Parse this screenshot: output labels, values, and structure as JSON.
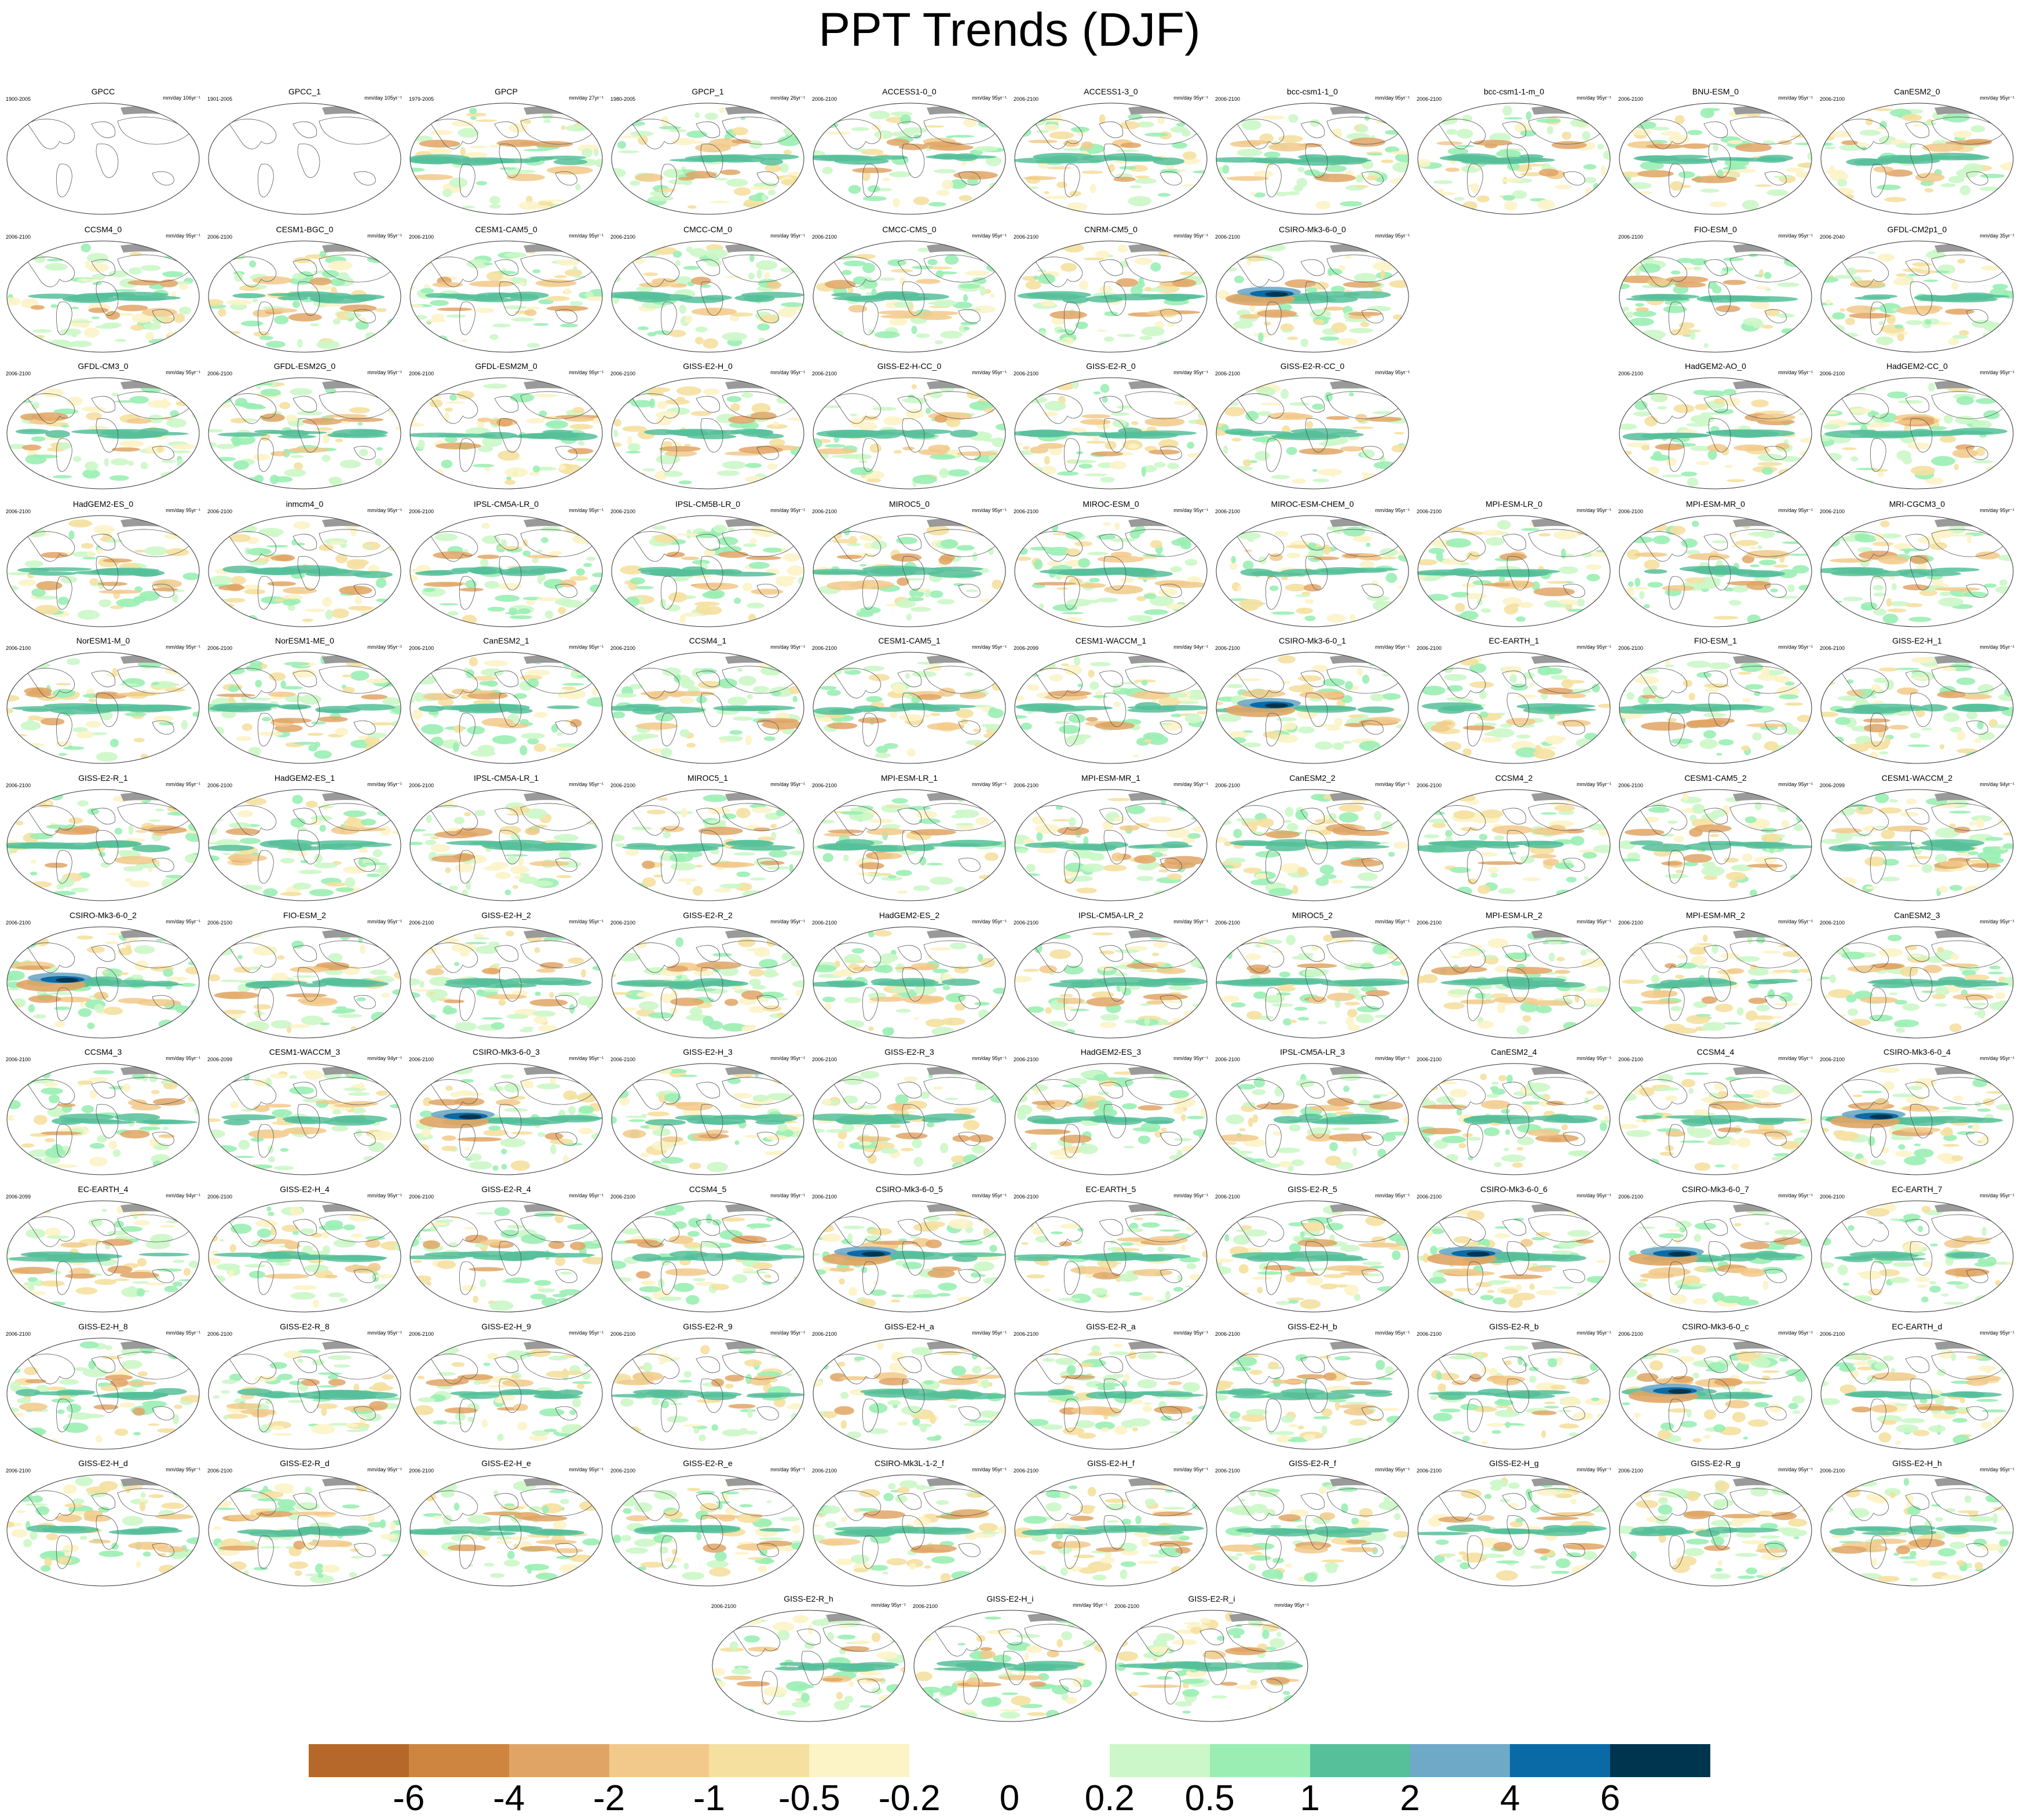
{
  "title": "PPT Trends (DJF)",
  "panels": [
    [
      {
        "name": "GPCC",
        "years": "1900-2005",
        "units": "mm/day 106yr⁻¹",
        "missing": true
      },
      {
        "name": "GPCC_1",
        "years": "1901-2005",
        "units": "mm/day 105yr⁻¹",
        "missing": true
      },
      {
        "name": "GPCP",
        "years": "1979-2005",
        "units": "mm/day 27yr⁻¹"
      },
      {
        "name": "GPCP_1",
        "years": "1980-2005",
        "units": "mm/day 26yr⁻¹"
      },
      {
        "name": "ACCESS1-0_0",
        "years": "2006-2100",
        "units": "mm/day 95yr⁻¹"
      },
      {
        "name": "ACCESS1-3_0",
        "years": "2006-2100",
        "units": "mm/day 95yr⁻¹"
      },
      {
        "name": "bcc-csm1-1_0",
        "years": "2006-2100",
        "units": "mm/day 95yr⁻¹"
      },
      {
        "name": "bcc-csm1-1-m_0",
        "years": "2006-2100",
        "units": "mm/day 95yr⁻¹"
      },
      {
        "name": "BNU-ESM_0",
        "years": "2006-2100",
        "units": "mm/day 95yr⁻¹"
      },
      {
        "name": "CanESM2_0",
        "years": "2006-2100",
        "units": "mm/day 95yr⁻¹"
      }
    ],
    [
      {
        "name": "CCSM4_0",
        "years": "2006-2100",
        "units": "mm/day 95yr⁻¹"
      },
      {
        "name": "CESM1-BGC_0",
        "years": "2006-2100",
        "units": "mm/day 95yr⁻¹"
      },
      {
        "name": "CESM1-CAM5_0",
        "years": "2006-2100",
        "units": "mm/day 95yr⁻¹"
      },
      {
        "name": "CMCC-CM_0",
        "years": "2006-2100",
        "units": "mm/day 95yr⁻¹"
      },
      {
        "name": "CMCC-CMS_0",
        "years": "2006-2100",
        "units": "mm/day 95yr⁻¹"
      },
      {
        "name": "CNRM-CM5_0",
        "years": "2006-2100",
        "units": "mm/day 95yr⁻¹"
      },
      {
        "name": "CSIRO-Mk3-6-0_0",
        "years": "2006-2100",
        "units": "mm/day 95yr⁻¹",
        "strong": true
      },
      null,
      {
        "name": "FIO-ESM_0",
        "years": "2006-2100",
        "units": "mm/day 95yr⁻¹"
      },
      {
        "name": "GFDL-CM2p1_0",
        "years": "2006-2040",
        "units": "mm/day 35yr⁻¹"
      }
    ],
    [
      {
        "name": "GFDL-CM3_0",
        "years": "2006-2100",
        "units": "mm/day 95yr⁻¹"
      },
      {
        "name": "GFDL-ESM2G_0",
        "years": "2006-2100",
        "units": "mm/day 95yr⁻¹"
      },
      {
        "name": "GFDL-ESM2M_0",
        "years": "2006-2100",
        "units": "mm/day 95yr⁻¹"
      },
      {
        "name": "GISS-E2-H_0",
        "years": "2006-2100",
        "units": "mm/day 95yr⁻¹"
      },
      {
        "name": "GISS-E2-H-CC_0",
        "years": "2006-2100",
        "units": "mm/day 95yr⁻¹"
      },
      {
        "name": "GISS-E2-R_0",
        "years": "2006-2100",
        "units": "mm/day 95yr⁻¹"
      },
      {
        "name": "GISS-E2-R-CC_0",
        "years": "2006-2100",
        "units": "mm/day 95yr⁻¹"
      },
      null,
      {
        "name": "HadGEM2-AO_0",
        "years": "2006-2100",
        "units": "mm/day 95yr⁻¹"
      },
      {
        "name": "HadGEM2-CC_0",
        "years": "2006-2100",
        "units": "mm/day 95yr⁻¹"
      }
    ],
    [
      {
        "name": "HadGEM2-ES_0",
        "years": "2006-2100",
        "units": "mm/day 95yr⁻¹"
      },
      {
        "name": "inmcm4_0",
        "years": "2006-2100",
        "units": "mm/day 95yr⁻¹"
      },
      {
        "name": "IPSL-CM5A-LR_0",
        "years": "2006-2100",
        "units": "mm/day 95yr⁻¹"
      },
      {
        "name": "IPSL-CM5B-LR_0",
        "years": "2006-2100",
        "units": "mm/day 95yr⁻¹"
      },
      {
        "name": "MIROC5_0",
        "years": "2006-2100",
        "units": "mm/day 95yr⁻¹"
      },
      {
        "name": "MIROC-ESM_0",
        "years": "2006-2100",
        "units": "mm/day 95yr⁻¹"
      },
      {
        "name": "MIROC-ESM-CHEM_0",
        "years": "2006-2100",
        "units": "mm/day 95yr⁻¹"
      },
      {
        "name": "MPI-ESM-LR_0",
        "years": "2006-2100",
        "units": "mm/day 95yr⁻¹"
      },
      {
        "name": "MPI-ESM-MR_0",
        "years": "2006-2100",
        "units": "mm/day 95yr⁻¹"
      },
      {
        "name": "MRI-CGCM3_0",
        "years": "2006-2100",
        "units": "mm/day 95yr⁻¹"
      }
    ],
    [
      {
        "name": "NorESM1-M_0",
        "years": "2006-2100",
        "units": "mm/day 95yr⁻¹"
      },
      {
        "name": "NorESM1-ME_0",
        "years": "2006-2100",
        "units": "mm/day 95yr⁻¹"
      },
      {
        "name": "CanESM2_1",
        "years": "2006-2100",
        "units": "mm/day 95yr⁻¹"
      },
      {
        "name": "CCSM4_1",
        "years": "2006-2100",
        "units": "mm/day 95yr⁻¹"
      },
      {
        "name": "CESM1-CAM5_1",
        "years": "2006-2100",
        "units": "mm/day 95yr⁻¹"
      },
      {
        "name": "CESM1-WACCM_1",
        "years": "2006-2099",
        "units": "mm/day 94yr⁻¹"
      },
      {
        "name": "CSIRO-Mk3-6-0_1",
        "years": "2006-2100",
        "units": "mm/day 95yr⁻¹",
        "strong": true
      },
      {
        "name": "EC-EARTH_1",
        "years": "2006-2100",
        "units": "mm/day 95yr⁻¹"
      },
      {
        "name": "FIO-ESM_1",
        "years": "2006-2100",
        "units": "mm/day 95yr⁻¹"
      },
      {
        "name": "GISS-E2-H_1",
        "years": "2006-2100",
        "units": "mm/day 95yr⁻¹"
      }
    ],
    [
      {
        "name": "GISS-E2-R_1",
        "years": "2006-2100",
        "units": "mm/day 95yr⁻¹"
      },
      {
        "name": "HadGEM2-ES_1",
        "years": "2006-2100",
        "units": "mm/day 95yr⁻¹"
      },
      {
        "name": "IPSL-CM5A-LR_1",
        "years": "2006-2100",
        "units": "mm/day 95yr⁻¹"
      },
      {
        "name": "MIROC5_1",
        "years": "2006-2100",
        "units": "mm/day 95yr⁻¹"
      },
      {
        "name": "MPI-ESM-LR_1",
        "years": "2006-2100",
        "units": "mm/day 95yr⁻¹"
      },
      {
        "name": "MPI-ESM-MR_1",
        "years": "2006-2100",
        "units": "mm/day 95yr⁻¹"
      },
      {
        "name": "CanESM2_2",
        "years": "2006-2100",
        "units": "mm/day 95yr⁻¹"
      },
      {
        "name": "CCSM4_2",
        "years": "2006-2100",
        "units": "mm/day 95yr⁻¹"
      },
      {
        "name": "CESM1-CAM5_2",
        "years": "2006-2100",
        "units": "mm/day 95yr⁻¹"
      },
      {
        "name": "CESM1-WACCM_2",
        "years": "2006-2099",
        "units": "mm/day 94yr⁻¹"
      }
    ],
    [
      {
        "name": "CSIRO-Mk3-6-0_2",
        "years": "2006-2100",
        "units": "mm/day 95yr⁻¹",
        "strong": true
      },
      {
        "name": "FIO-ESM_2",
        "years": "2006-2100",
        "units": "mm/day 95yr⁻¹"
      },
      {
        "name": "GISS-E2-H_2",
        "years": "2006-2100",
        "units": "mm/day 95yr⁻¹"
      },
      {
        "name": "GISS-E2-R_2",
        "years": "2006-2100",
        "units": "mm/day 95yr⁻¹"
      },
      {
        "name": "HadGEM2-ES_2",
        "years": "2006-2100",
        "units": "mm/day 95yr⁻¹"
      },
      {
        "name": "IPSL-CM5A-LR_2",
        "years": "2006-2100",
        "units": "mm/day 95yr⁻¹"
      },
      {
        "name": "MIROC5_2",
        "years": "2006-2100",
        "units": "mm/day 95yr⁻¹"
      },
      {
        "name": "MPI-ESM-LR_2",
        "years": "2006-2100",
        "units": "mm/day 95yr⁻¹"
      },
      {
        "name": "MPI-ESM-MR_2",
        "years": "2006-2100",
        "units": "mm/day 95yr⁻¹"
      },
      {
        "name": "CanESM2_3",
        "years": "2006-2100",
        "units": "mm/day 95yr⁻¹"
      }
    ],
    [
      {
        "name": "CCSM4_3",
        "years": "2006-2100",
        "units": "mm/day 95yr⁻¹"
      },
      {
        "name": "CESM1-WACCM_3",
        "years": "2006-2099",
        "units": "mm/day 94yr⁻¹"
      },
      {
        "name": "CSIRO-Mk3-6-0_3",
        "years": "2006-2100",
        "units": "mm/day 95yr⁻¹",
        "strong": true
      },
      {
        "name": "GISS-E2-H_3",
        "years": "2006-2100",
        "units": "mm/day 95yr⁻¹"
      },
      {
        "name": "GISS-E2-R_3",
        "years": "2006-2100",
        "units": "mm/day 95yr⁻¹"
      },
      {
        "name": "HadGEM2-ES_3",
        "years": "2006-2100",
        "units": "mm/day 95yr⁻¹"
      },
      {
        "name": "IPSL-CM5A-LR_3",
        "years": "2006-2100",
        "units": "mm/day 95yr⁻¹"
      },
      {
        "name": "CanESM2_4",
        "years": "2006-2100",
        "units": "mm/day 95yr⁻¹"
      },
      {
        "name": "CCSM4_4",
        "years": "2006-2100",
        "units": "mm/day 95yr⁻¹"
      },
      {
        "name": "CSIRO-Mk3-6-0_4",
        "years": "2006-2100",
        "units": "mm/day 95yr⁻¹",
        "strong": true
      }
    ],
    [
      {
        "name": "EC-EARTH_4",
        "years": "2006-2099",
        "units": "mm/day 94yr⁻¹"
      },
      {
        "name": "GISS-E2-H_4",
        "years": "2006-2100",
        "units": "mm/day 95yr⁻¹"
      },
      {
        "name": "GISS-E2-R_4",
        "years": "2006-2100",
        "units": "mm/day 95yr⁻¹"
      },
      {
        "name": "CCSM4_5",
        "years": "2006-2100",
        "units": "mm/day 95yr⁻¹"
      },
      {
        "name": "CSIRO-Mk3-6-0_5",
        "years": "2006-2100",
        "units": "mm/day 95yr⁻¹",
        "strong": true
      },
      {
        "name": "EC-EARTH_5",
        "years": "2006-2100",
        "units": "mm/day 95yr⁻¹"
      },
      {
        "name": "GISS-E2-R_5",
        "years": "2006-2100",
        "units": "mm/day 95yr⁻¹"
      },
      {
        "name": "CSIRO-Mk3-6-0_6",
        "years": "2006-2100",
        "units": "mm/day 95yr⁻¹",
        "strong": true
      },
      {
        "name": "CSIRO-Mk3-6-0_7",
        "years": "2006-2100",
        "units": "mm/day 95yr⁻¹",
        "strong": true
      },
      {
        "name": "EC-EARTH_7",
        "years": "2006-2100",
        "units": "mm/day 95yr⁻¹"
      }
    ],
    [
      {
        "name": "GISS-E2-H_8",
        "years": "2006-2100",
        "units": "mm/day 95yr⁻¹"
      },
      {
        "name": "GISS-E2-R_8",
        "years": "2006-2100",
        "units": "mm/day 95yr⁻¹"
      },
      {
        "name": "GISS-E2-H_9",
        "years": "2006-2100",
        "units": "mm/day 95yr⁻¹"
      },
      {
        "name": "GISS-E2-R_9",
        "years": "2006-2100",
        "units": "mm/day 95yr⁻¹"
      },
      {
        "name": "GISS-E2-H_a",
        "years": "2006-2100",
        "units": "mm/day 95yr⁻¹"
      },
      {
        "name": "GISS-E2-R_a",
        "years": "2006-2100",
        "units": "mm/day 95yr⁻¹"
      },
      {
        "name": "GISS-E2-H_b",
        "years": "2006-2100",
        "units": "mm/day 95yr⁻¹"
      },
      {
        "name": "GISS-E2-R_b",
        "years": "2006-2100",
        "units": "mm/day 95yr⁻¹"
      },
      {
        "name": "CSIRO-Mk3-6-0_c",
        "years": "2006-2100",
        "units": "mm/day 95yr⁻¹",
        "strong": true
      },
      {
        "name": "EC-EARTH_d",
        "years": "2006-2100",
        "units": "mm/day 95yr⁻¹"
      }
    ],
    [
      {
        "name": "GISS-E2-H_d",
        "years": "2006-2100",
        "units": "mm/day 95yr⁻¹"
      },
      {
        "name": "GISS-E2-R_d",
        "years": "2006-2100",
        "units": "mm/day 95yr⁻¹"
      },
      {
        "name": "GISS-E2-H_e",
        "years": "2006-2100",
        "units": "mm/day 95yr⁻¹"
      },
      {
        "name": "GISS-E2-R_e",
        "years": "2006-2100",
        "units": "mm/day 95yr⁻¹"
      },
      {
        "name": "CSIRO-Mk3L-1-2_f",
        "years": "2006-2100",
        "units": "mm/day 95yr⁻¹"
      },
      {
        "name": "GISS-E2-H_f",
        "years": "2006-2100",
        "units": "mm/day 95yr⁻¹"
      },
      {
        "name": "GISS-E2-R_f",
        "years": "2006-2100",
        "units": "mm/day 95yr⁻¹"
      },
      {
        "name": "GISS-E2-H_g",
        "years": "2006-2100",
        "units": "mm/day 95yr⁻¹"
      },
      {
        "name": "GISS-E2-R_g",
        "years": "2006-2100",
        "units": "mm/day 95yr⁻¹"
      },
      {
        "name": "GISS-E2-H_h",
        "years": "2006-2100",
        "units": "mm/day 95yr⁻¹"
      }
    ],
    [
      {
        "name": "GISS-E2-R_h",
        "years": "2006-2100",
        "units": "mm/day 95yr⁻¹"
      },
      {
        "name": "GISS-E2-H_i",
        "years": "2006-2100",
        "units": "mm/day 95yr⁻¹"
      },
      {
        "name": "GISS-E2-R_i",
        "years": "2006-2100",
        "units": "mm/day 95yr⁻¹"
      }
    ]
  ],
  "colorbar": {
    "colors": [
      "#b5682a",
      "#cd853f",
      "#e0a565",
      "#f2c98a",
      "#f5e0a0",
      "#fcf3c6",
      "#ffffff",
      "#ffffff",
      "#ccf7c8",
      "#9aeeb4",
      "#56c09a",
      "#6fa9c8",
      "#0a6aa6",
      "#00354f"
    ],
    "labels": [
      "-6",
      "-4",
      "-2",
      "-1",
      "-0.5",
      "-0.2",
      "0",
      "0.2",
      "0.5",
      "1",
      "2",
      "4",
      "6"
    ]
  }
}
